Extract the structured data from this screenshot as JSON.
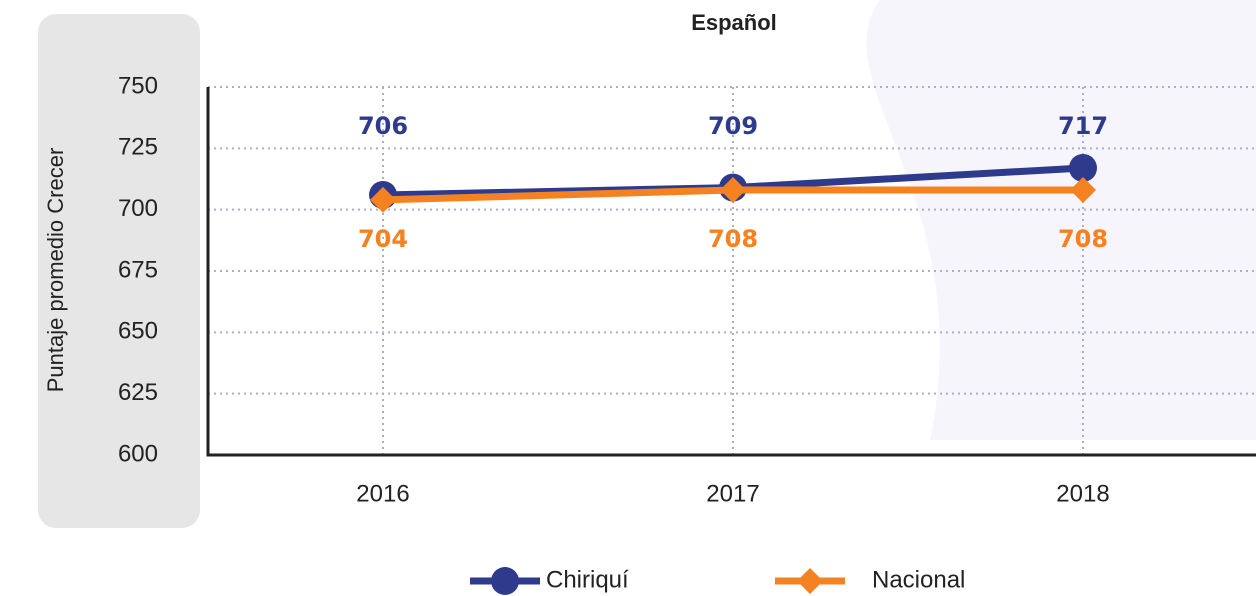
{
  "chart_data": {
    "type": "line",
    "title": "Español",
    "y_label": "Puntaje promedio Crecer",
    "categories": [
      "2016",
      "2017",
      "2018"
    ],
    "series": [
      {
        "name": "Chiriquí",
        "color": "#2e3a8c",
        "marker": "circle",
        "values": [
          706,
          709,
          717
        ]
      },
      {
        "name": "Nacional",
        "color": "#f58220",
        "marker": "diamond",
        "values": [
          704,
          708,
          708
        ]
      }
    ],
    "ylim": [
      600,
      750
    ],
    "yticks": [
      600,
      625,
      650,
      675,
      700,
      725,
      750
    ],
    "grid": true,
    "legend": "bottom"
  }
}
